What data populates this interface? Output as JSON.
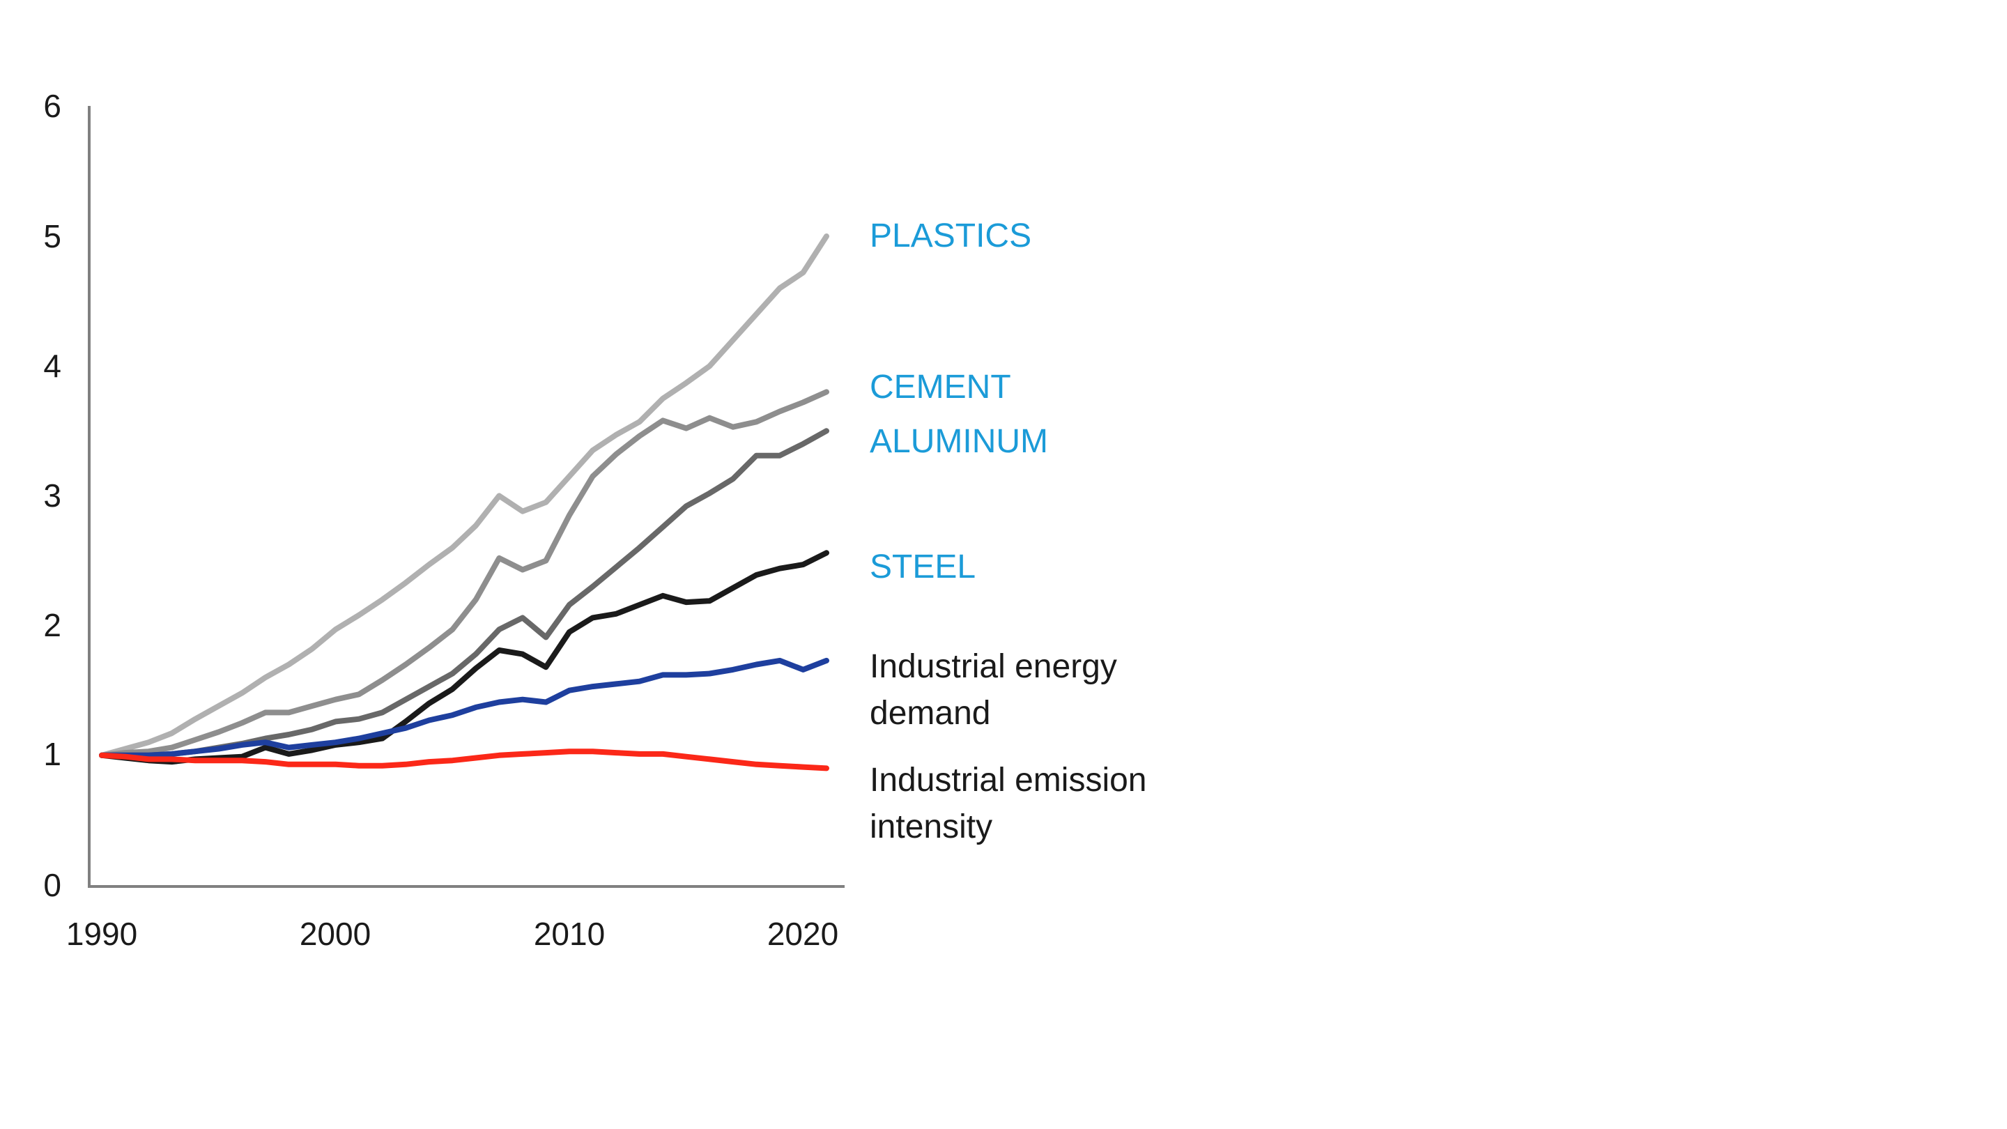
{
  "chart_data": {
    "type": "line",
    "title": "",
    "xlabel": "",
    "ylabel": "",
    "ylim": [
      0,
      6
    ],
    "xlim": [
      1990,
      2022
    ],
    "grid": false,
    "y_tick_labels": [
      "6",
      "5",
      "4",
      "3",
      "2",
      "1",
      "0"
    ],
    "x_tick_labels": [
      "1990",
      "2000",
      "2010",
      "2020"
    ],
    "axis_color": "#808080",
    "label_color_industry": "#1b9bd8",
    "label_color_indicator": "#1a1a1a",
    "x": [
      1990,
      1991,
      1992,
      1993,
      1994,
      1995,
      1996,
      1997,
      1998,
      1999,
      2000,
      2001,
      2002,
      2003,
      2004,
      2005,
      2006,
      2007,
      2008,
      2009,
      2010,
      2011,
      2012,
      2013,
      2014,
      2015,
      2016,
      2017,
      2018,
      2019,
      2020,
      2021
    ],
    "series": [
      {
        "id": "plastics",
        "label": "PLASTICS",
        "label_lines": [
          "PLASTICS"
        ],
        "color": "#b0b0b0",
        "values": [
          1.0,
          1.05,
          1.1,
          1.17,
          1.28,
          1.38,
          1.48,
          1.6,
          1.7,
          1.82,
          1.97,
          2.08,
          2.2,
          2.33,
          2.47,
          2.6,
          2.77,
          3.0,
          2.88,
          2.95,
          3.15,
          3.35,
          3.47,
          3.57,
          3.75,
          3.87,
          4.0,
          4.2,
          4.4,
          4.6,
          4.72,
          5.0
        ]
      },
      {
        "id": "cement",
        "label": "CEMENT",
        "label_lines": [
          "CEMENT"
        ],
        "color": "#8e8e8e",
        "values": [
          1.0,
          1.02,
          1.03,
          1.06,
          1.12,
          1.18,
          1.25,
          1.33,
          1.33,
          1.38,
          1.43,
          1.47,
          1.58,
          1.7,
          1.83,
          1.97,
          2.2,
          2.52,
          2.43,
          2.5,
          2.85,
          3.15,
          3.32,
          3.46,
          3.58,
          3.52,
          3.6,
          3.53,
          3.57,
          3.65,
          3.72,
          3.8
        ]
      },
      {
        "id": "aluminum",
        "label": "ALUMINUM",
        "label_lines": [
          "ALUMINUM"
        ],
        "color": "#686868",
        "values": [
          1.0,
          1.0,
          1.0,
          1.01,
          1.03,
          1.06,
          1.09,
          1.13,
          1.16,
          1.2,
          1.26,
          1.28,
          1.33,
          1.43,
          1.53,
          1.63,
          1.78,
          1.97,
          2.06,
          1.91,
          2.16,
          2.3,
          2.45,
          2.6,
          2.76,
          2.92,
          3.02,
          3.13,
          3.31,
          3.31,
          3.4,
          3.5
        ]
      },
      {
        "id": "steel",
        "label": "STEEL",
        "label_lines": [
          "STEEL"
        ],
        "color": "#1a1a1a",
        "values": [
          1.0,
          0.98,
          0.96,
          0.95,
          0.97,
          0.98,
          0.99,
          1.06,
          1.01,
          1.04,
          1.08,
          1.1,
          1.13,
          1.26,
          1.4,
          1.51,
          1.67,
          1.81,
          1.78,
          1.68,
          1.95,
          2.06,
          2.09,
          2.16,
          2.23,
          2.18,
          2.19,
          2.29,
          2.39,
          2.44,
          2.47,
          2.56
        ]
      },
      {
        "id": "industrial-energy-demand",
        "label": "Industrial energy demand",
        "label_lines": [
          "Industrial energy",
          "demand"
        ],
        "color": "#1e3f9e",
        "values": [
          1.0,
          1.0,
          1.0,
          1.01,
          1.03,
          1.05,
          1.08,
          1.1,
          1.06,
          1.08,
          1.1,
          1.13,
          1.17,
          1.21,
          1.27,
          1.31,
          1.37,
          1.41,
          1.43,
          1.41,
          1.5,
          1.53,
          1.55,
          1.57,
          1.62,
          1.62,
          1.63,
          1.66,
          1.7,
          1.73,
          1.66,
          1.73
        ]
      },
      {
        "id": "industrial-emission-intensity",
        "label": "Industrial emission intensity",
        "label_lines": [
          "Industrial emission",
          "intensity"
        ],
        "color": "#fb2818",
        "values": [
          1.0,
          0.99,
          0.97,
          0.97,
          0.96,
          0.96,
          0.96,
          0.95,
          0.93,
          0.93,
          0.93,
          0.92,
          0.92,
          0.93,
          0.95,
          0.96,
          0.98,
          1.0,
          1.01,
          1.02,
          1.03,
          1.03,
          1.02,
          1.01,
          1.01,
          0.99,
          0.97,
          0.95,
          0.93,
          0.92,
          0.91,
          0.9
        ]
      }
    ]
  }
}
